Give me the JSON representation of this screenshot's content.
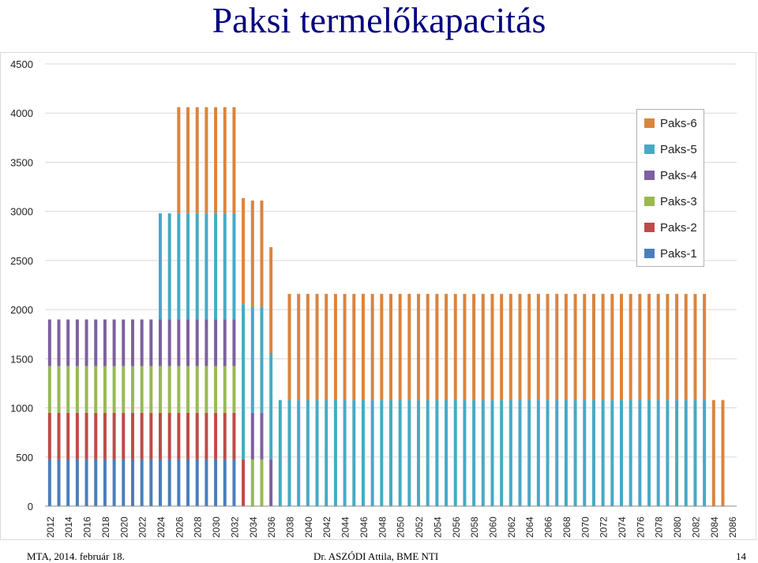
{
  "title": "Paksi termelőkapacitás",
  "footer": {
    "left": "MTA, 2014. február 18.",
    "center": "Dr. ASZÓDI Attila, BME NTI",
    "page": "14"
  },
  "chart_data": {
    "type": "bar",
    "stacked": true,
    "title": "",
    "xlabel": "",
    "ylabel": "",
    "ylim": [
      0,
      4500
    ],
    "yticks": [
      0,
      500,
      1000,
      1500,
      2000,
      2500,
      3000,
      3500,
      4000,
      4500
    ],
    "grid": true,
    "legend_position": "top-right",
    "categories": [
      "2012",
      "2013",
      "2014",
      "2015",
      "2016",
      "2017",
      "2018",
      "2019",
      "2020",
      "2021",
      "2022",
      "2023",
      "2024",
      "2025",
      "2026",
      "2027",
      "2028",
      "2029",
      "2030",
      "2031",
      "2032",
      "2033",
      "2034",
      "2035",
      "2036",
      "2037",
      "2038",
      "2039",
      "2040",
      "2041",
      "2042",
      "2043",
      "2044",
      "2045",
      "2046",
      "2047",
      "2048",
      "2049",
      "2050",
      "2051",
      "2052",
      "2053",
      "2054",
      "2055",
      "2056",
      "2057",
      "2058",
      "2059",
      "2060",
      "2061",
      "2062",
      "2063",
      "2064",
      "2065",
      "2066",
      "2067",
      "2068",
      "2069",
      "2070",
      "2071",
      "2072",
      "2073",
      "2074",
      "2075",
      "2076",
      "2077",
      "2078",
      "2079",
      "2080",
      "2081",
      "2082",
      "2083",
      "2084",
      "2085",
      "2086"
    ],
    "tick_labels": [
      "2012",
      "2014",
      "2016",
      "2018",
      "2020",
      "2022",
      "2024",
      "2026",
      "2028",
      "2030",
      "2032",
      "2034",
      "2036",
      "2038",
      "2040",
      "2042",
      "2044",
      "2046",
      "2048",
      "2050",
      "2052",
      "2054",
      "2056",
      "2058",
      "2060",
      "2062",
      "2064",
      "2066",
      "2068",
      "2070",
      "2072",
      "2074",
      "2076",
      "2078",
      "2080",
      "2082",
      "2084",
      "2086"
    ],
    "series": [
      {
        "name": "Paks-1",
        "color": "#4a7ebb",
        "values": [
          475,
          475,
          475,
          475,
          475,
          475,
          475,
          475,
          475,
          475,
          475,
          475,
          475,
          475,
          475,
          475,
          475,
          475,
          475,
          475,
          475,
          0,
          0,
          0,
          0,
          0,
          0,
          0,
          0,
          0,
          0,
          0,
          0,
          0,
          0,
          0,
          0,
          0,
          0,
          0,
          0,
          0,
          0,
          0,
          0,
          0,
          0,
          0,
          0,
          0,
          0,
          0,
          0,
          0,
          0,
          0,
          0,
          0,
          0,
          0,
          0,
          0,
          0,
          0,
          0,
          0,
          0,
          0,
          0,
          0,
          0,
          0,
          0,
          0,
          0
        ]
      },
      {
        "name": "Paks-2",
        "color": "#be4b48",
        "values": [
          475,
          475,
          475,
          475,
          475,
          475,
          475,
          475,
          475,
          475,
          475,
          475,
          475,
          475,
          475,
          475,
          475,
          475,
          475,
          475,
          475,
          475,
          0,
          0,
          0,
          0,
          0,
          0,
          0,
          0,
          0,
          0,
          0,
          0,
          0,
          0,
          0,
          0,
          0,
          0,
          0,
          0,
          0,
          0,
          0,
          0,
          0,
          0,
          0,
          0,
          0,
          0,
          0,
          0,
          0,
          0,
          0,
          0,
          0,
          0,
          0,
          0,
          0,
          0,
          0,
          0,
          0,
          0,
          0,
          0,
          0,
          0,
          0,
          0,
          0
        ]
      },
      {
        "name": "Paks-3",
        "color": "#98b954",
        "values": [
          475,
          475,
          475,
          475,
          475,
          475,
          475,
          475,
          475,
          475,
          475,
          475,
          475,
          475,
          475,
          475,
          475,
          475,
          475,
          475,
          475,
          0,
          475,
          475,
          0,
          0,
          0,
          0,
          0,
          0,
          0,
          0,
          0,
          0,
          0,
          0,
          0,
          0,
          0,
          0,
          0,
          0,
          0,
          0,
          0,
          0,
          0,
          0,
          0,
          0,
          0,
          0,
          0,
          0,
          0,
          0,
          0,
          0,
          0,
          0,
          0,
          0,
          0,
          0,
          0,
          0,
          0,
          0,
          0,
          0,
          0,
          0,
          0,
          0,
          0
        ]
      },
      {
        "name": "Paks-4",
        "color": "#7d60a0",
        "values": [
          475,
          475,
          475,
          475,
          475,
          475,
          475,
          475,
          475,
          475,
          475,
          475,
          475,
          475,
          475,
          475,
          475,
          475,
          475,
          475,
          475,
          0,
          475,
          475,
          475,
          0,
          0,
          0,
          0,
          0,
          0,
          0,
          0,
          0,
          0,
          0,
          0,
          0,
          0,
          0,
          0,
          0,
          0,
          0,
          0,
          0,
          0,
          0,
          0,
          0,
          0,
          0,
          0,
          0,
          0,
          0,
          0,
          0,
          0,
          0,
          0,
          0,
          0,
          0,
          0,
          0,
          0,
          0,
          0,
          0,
          0,
          0,
          0,
          0,
          0
        ]
      },
      {
        "name": "Paks-5",
        "color": "#46aac5",
        "values": [
          0,
          0,
          0,
          0,
          0,
          0,
          0,
          0,
          0,
          0,
          0,
          0,
          1080,
          1080,
          1080,
          1080,
          1080,
          1080,
          1080,
          1080,
          1080,
          1580,
          1080,
          1080,
          1080,
          1080,
          1080,
          1080,
          1080,
          1080,
          1080,
          1080,
          1080,
          1080,
          1080,
          1080,
          1080,
          1080,
          1080,
          1080,
          1080,
          1080,
          1080,
          1080,
          1080,
          1080,
          1080,
          1080,
          1080,
          1080,
          1080,
          1080,
          1080,
          1080,
          1080,
          1080,
          1080,
          1080,
          1080,
          1080,
          1080,
          1080,
          1080,
          1080,
          1080,
          1080,
          1080,
          1080,
          1080,
          1080,
          1080,
          1080,
          0,
          0,
          0
        ]
      },
      {
        "name": "Paks-6",
        "color": "#db843d",
        "values": [
          0,
          0,
          0,
          0,
          0,
          0,
          0,
          0,
          0,
          0,
          0,
          0,
          0,
          0,
          1080,
          1080,
          1080,
          1080,
          1080,
          1080,
          1080,
          1080,
          1080,
          1080,
          1080,
          0,
          1080,
          1080,
          1080,
          1080,
          1080,
          1080,
          1080,
          1080,
          1080,
          1080,
          1080,
          1080,
          1080,
          1080,
          1080,
          1080,
          1080,
          1080,
          1080,
          1080,
          1080,
          1080,
          1080,
          1080,
          1080,
          1080,
          1080,
          1080,
          1080,
          1080,
          1080,
          1080,
          1080,
          1080,
          1080,
          1080,
          1080,
          1080,
          1080,
          1080,
          1080,
          1080,
          1080,
          1080,
          1080,
          1080,
          1080,
          1080,
          0
        ]
      }
    ]
  }
}
